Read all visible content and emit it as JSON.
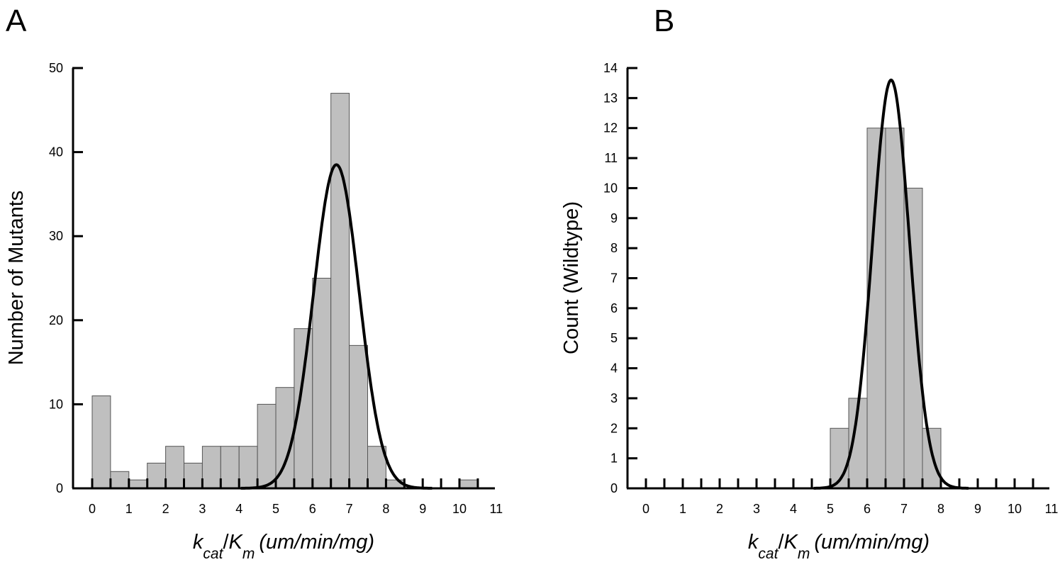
{
  "chart_data": [
    {
      "type": "bar",
      "panel_label": "A",
      "ylabel": "Number of Mutants",
      "xlabel": {
        "k": "k",
        "k_sub": "cat",
        "sep": "/",
        "K": "K",
        "K_sub": "m",
        "units": "(um/min/mg)"
      },
      "xlim": [
        -0.5,
        11
      ],
      "ylim": [
        0,
        50
      ],
      "x_ticks": [
        0,
        1,
        2,
        3,
        4,
        5,
        6,
        7,
        8,
        9,
        10,
        11
      ],
      "y_ticks": [
        0,
        10,
        20,
        30,
        40,
        50
      ],
      "bin_width": 0.5,
      "bin_starts": [
        0,
        0.5,
        1,
        1.5,
        2,
        2.5,
        3,
        3.5,
        4,
        4.5,
        5,
        5.5,
        6,
        6.5,
        7,
        7.5,
        8,
        10
      ],
      "values": [
        11,
        2,
        1,
        3,
        5,
        3,
        5,
        5,
        5,
        10,
        12,
        19,
        25,
        47,
        17,
        5,
        1,
        1
      ],
      "fit": {
        "type": "gaussian",
        "peak": 38.5,
        "mean": 6.65,
        "sd": 0.62
      },
      "grid": false,
      "legend": "none"
    },
    {
      "type": "bar",
      "panel_label": "B",
      "ylabel": "Count (Wildtype)",
      "xlabel": {
        "k": "k",
        "k_sub": "cat",
        "sep": "/",
        "K": "K",
        "K_sub": "m",
        "units": "(um/min/mg)"
      },
      "xlim": [
        -0.5,
        11
      ],
      "ylim": [
        0,
        14
      ],
      "x_ticks": [
        0,
        1,
        2,
        3,
        4,
        5,
        6,
        7,
        8,
        9,
        10,
        11
      ],
      "y_ticks": [
        0,
        1,
        2,
        3,
        4,
        5,
        6,
        7,
        8,
        9,
        10,
        11,
        12,
        13,
        14
      ],
      "bin_width": 0.5,
      "bin_starts": [
        5,
        5.5,
        6,
        6.5,
        7,
        7.5
      ],
      "values": [
        2,
        3,
        12,
        12,
        10,
        2
      ],
      "fit": {
        "type": "gaussian",
        "peak": 13.6,
        "mean": 6.65,
        "sd": 0.5
      },
      "grid": false,
      "legend": "none"
    }
  ]
}
